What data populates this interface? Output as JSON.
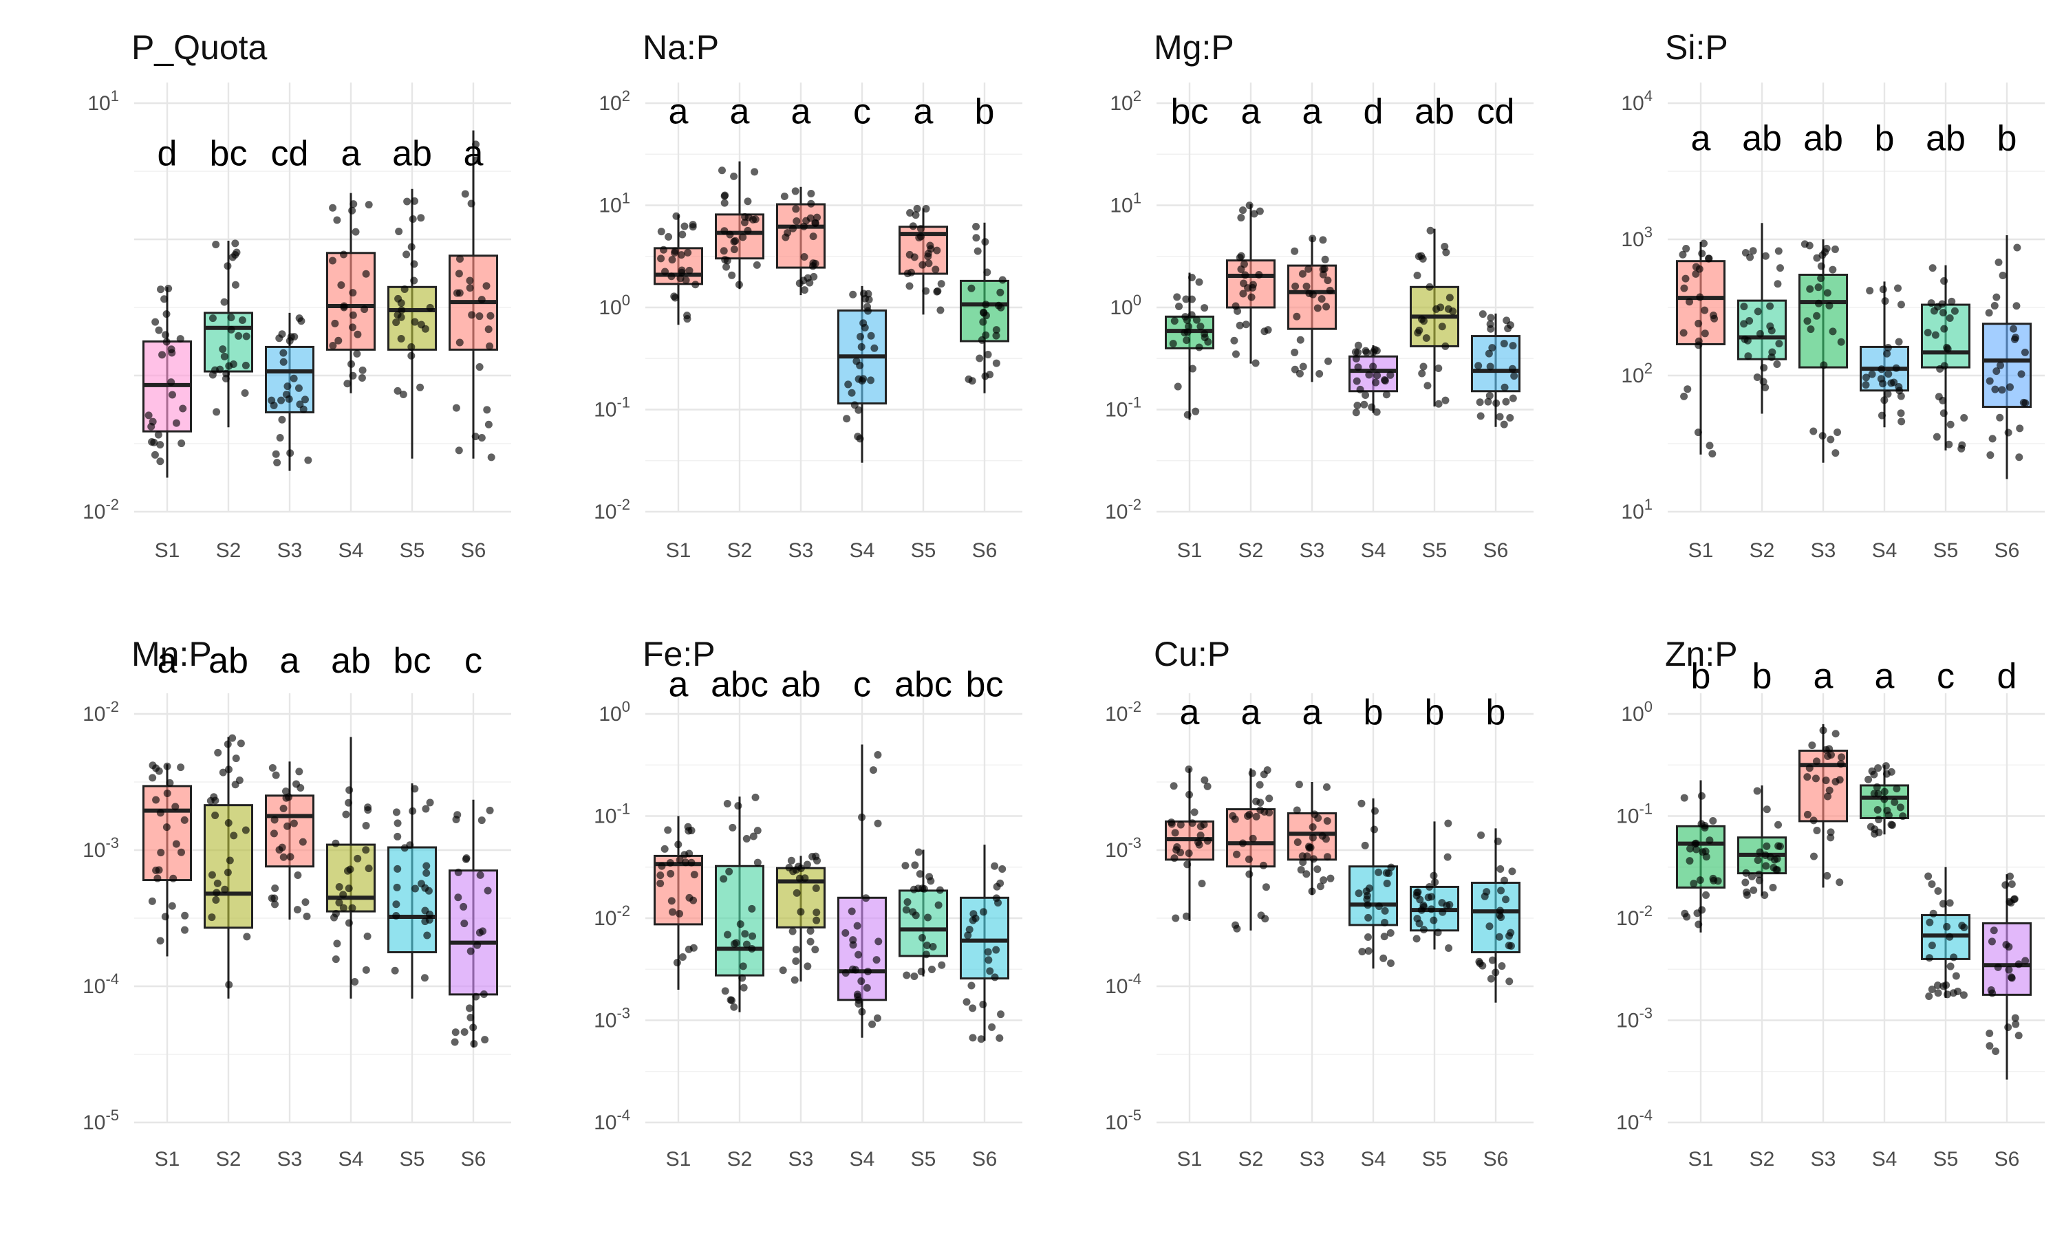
{
  "colors": {
    "pink": "#ff9bd9",
    "teal": "#4fd5a5",
    "blue": "#5fc2f2",
    "salmon": "#ff8a80",
    "olive": "#b5bb3a",
    "green": "#35c46c",
    "violet": "#d08cf7",
    "cyan": "#4fd0e4",
    "sky": "#6ab0ff"
  },
  "chart_data": [
    {
      "type": "box",
      "title": "P_Quota",
      "scale": "log10",
      "ylim_log10": [
        -2,
        1
      ],
      "y_ticks": [
        {
          "base": "10",
          "exp": "1",
          "value": 1
        },
        {
          "base": "10",
          "exp": "-2",
          "value": -2
        }
      ],
      "categories": [
        "S1",
        "S2",
        "S3",
        "S4",
        "S5",
        "S6"
      ],
      "letters": [
        "d",
        "bc",
        "cd",
        "a",
        "ab",
        "a"
      ],
      "letter_y_log10": 0.64,
      "boxes": [
        {
          "q1": -1.41,
          "median": -1.07,
          "q3": -0.75,
          "lo": -1.75,
          "hi": -0.35,
          "color": "pink"
        },
        {
          "q1": -0.97,
          "median": -0.65,
          "q3": -0.54,
          "lo": -1.38,
          "hi": -0.01,
          "color": "teal"
        },
        {
          "q1": -1.27,
          "median": -0.97,
          "q3": -0.79,
          "lo": -1.7,
          "hi": -0.54,
          "color": "blue"
        },
        {
          "q1": -0.81,
          "median": -0.49,
          "q3": -0.1,
          "lo": -1.13,
          "hi": 0.34,
          "color": "salmon"
        },
        {
          "q1": -0.81,
          "median": -0.52,
          "q3": -0.35,
          "lo": -1.61,
          "hi": 0.37,
          "color": "olive"
        },
        {
          "q1": -0.81,
          "median": -0.46,
          "q3": -0.12,
          "lo": -1.61,
          "hi": 0.8,
          "color": "salmon"
        }
      ]
    },
    {
      "type": "box",
      "title": "Na:P",
      "scale": "log10",
      "ylim_log10": [
        -2,
        2
      ],
      "y_ticks": [
        {
          "base": "10",
          "exp": "2",
          "value": 2
        },
        {
          "base": "10",
          "exp": "1",
          "value": 1
        },
        {
          "base": "10",
          "exp": "0",
          "value": 0
        },
        {
          "base": "10",
          "exp": "-1",
          "value": -1
        },
        {
          "base": "10",
          "exp": "-2",
          "value": -2
        }
      ],
      "categories": [
        "S1",
        "S2",
        "S3",
        "S4",
        "S5",
        "S6"
      ],
      "letters": [
        "a",
        "a",
        "a",
        "c",
        "a",
        "b"
      ],
      "letter_y_log10": 1.93,
      "boxes": [
        {
          "q1": 0.23,
          "median": 0.32,
          "q3": 0.58,
          "lo": -0.17,
          "hi": 0.91,
          "color": "salmon"
        },
        {
          "q1": 0.48,
          "median": 0.73,
          "q3": 0.91,
          "lo": 0.18,
          "hi": 1.43,
          "color": "salmon"
        },
        {
          "q1": 0.39,
          "median": 0.79,
          "q3": 1.01,
          "lo": 0.12,
          "hi": 1.18,
          "color": "salmon"
        },
        {
          "q1": -0.94,
          "median": -0.48,
          "q3": -0.03,
          "lo": -1.52,
          "hi": 0.21,
          "color": "blue"
        },
        {
          "q1": 0.33,
          "median": 0.72,
          "q3": 0.79,
          "lo": -0.07,
          "hi": 0.97,
          "color": "salmon"
        },
        {
          "q1": -0.33,
          "median": 0.03,
          "q3": 0.26,
          "lo": -0.84,
          "hi": 0.83,
          "color": "green"
        }
      ]
    },
    {
      "type": "box",
      "title": "Mg:P",
      "scale": "log10",
      "ylim_log10": [
        -2,
        2
      ],
      "y_ticks": [
        {
          "base": "10",
          "exp": "2",
          "value": 2
        },
        {
          "base": "10",
          "exp": "1",
          "value": 1
        },
        {
          "base": "10",
          "exp": "0",
          "value": 0
        },
        {
          "base": "10",
          "exp": "-1",
          "value": -1
        },
        {
          "base": "10",
          "exp": "-2",
          "value": -2
        }
      ],
      "categories": [
        "S1",
        "S2",
        "S3",
        "S4",
        "S5",
        "S6"
      ],
      "letters": [
        "bc",
        "a",
        "a",
        "d",
        "ab",
        "cd"
      ],
      "letter_y_log10": 1.93,
      "boxes": [
        {
          "q1": -0.4,
          "median": -0.23,
          "q3": -0.09,
          "lo": -1.1,
          "hi": 0.34,
          "color": "green"
        },
        {
          "q1": 0.0,
          "median": 0.31,
          "q3": 0.46,
          "lo": -0.55,
          "hi": 1.01,
          "color": "salmon"
        },
        {
          "q1": -0.21,
          "median": 0.15,
          "q3": 0.41,
          "lo": -0.73,
          "hi": 0.69,
          "color": "salmon"
        },
        {
          "q1": -0.82,
          "median": -0.62,
          "q3": -0.48,
          "lo": -1.03,
          "hi": -0.37,
          "color": "violet"
        },
        {
          "q1": -0.38,
          "median": -0.09,
          "q3": 0.2,
          "lo": -0.97,
          "hi": 0.77,
          "color": "olive"
        },
        {
          "q1": -0.82,
          "median": -0.62,
          "q3": -0.28,
          "lo": -1.17,
          "hi": -0.06,
          "color": "blue"
        }
      ]
    },
    {
      "type": "box",
      "title": "Si:P",
      "scale": "log10",
      "ylim_log10": [
        1,
        4
      ],
      "y_ticks": [
        {
          "base": "10",
          "exp": "4",
          "value": 4
        },
        {
          "base": "10",
          "exp": "3",
          "value": 3
        },
        {
          "base": "10",
          "exp": "2",
          "value": 2
        },
        {
          "base": "10",
          "exp": "1",
          "value": 1
        }
      ],
      "categories": [
        "S1",
        "S2",
        "S3",
        "S4",
        "S5",
        "S6"
      ],
      "letters": [
        "a",
        "ab",
        "ab",
        "b",
        "ab",
        "b"
      ],
      "letter_y_log10": 3.75,
      "boxes": [
        {
          "q1": 2.23,
          "median": 2.57,
          "q3": 2.84,
          "lo": 1.42,
          "hi": 2.98,
          "color": "salmon"
        },
        {
          "q1": 2.12,
          "median": 2.28,
          "q3": 2.55,
          "lo": 1.72,
          "hi": 3.12,
          "color": "teal"
        },
        {
          "q1": 2.06,
          "median": 2.54,
          "q3": 2.74,
          "lo": 1.36,
          "hi": 3.0,
          "color": "green"
        },
        {
          "q1": 1.89,
          "median": 2.05,
          "q3": 2.21,
          "lo": 1.62,
          "hi": 2.69,
          "color": "blue"
        },
        {
          "q1": 2.06,
          "median": 2.17,
          "q3": 2.52,
          "lo": 1.45,
          "hi": 2.81,
          "color": "teal"
        },
        {
          "q1": 1.77,
          "median": 2.11,
          "q3": 2.38,
          "lo": 1.24,
          "hi": 3.03,
          "color": "sky"
        }
      ]
    },
    {
      "type": "box",
      "title": "Mn:P",
      "scale": "log10",
      "ylim_log10": [
        -5,
        -2
      ],
      "y_ticks": [
        {
          "base": "10",
          "exp": "-2",
          "value": -2
        },
        {
          "base": "10",
          "exp": "-3",
          "value": -3
        },
        {
          "base": "10",
          "exp": "-4",
          "value": -4
        },
        {
          "base": "10",
          "exp": "-5",
          "value": -5
        }
      ],
      "categories": [
        "S1",
        "S2",
        "S3",
        "S4",
        "S5",
        "S6"
      ],
      "letters": [
        "a",
        "ab",
        "a",
        "ab",
        "bc",
        "c"
      ],
      "letter_y_log10": -1.6,
      "boxes": [
        {
          "q1": -3.22,
          "median": -2.71,
          "q3": -2.53,
          "lo": -3.78,
          "hi": -2.37,
          "color": "salmon"
        },
        {
          "q1": -3.57,
          "median": -3.32,
          "q3": -2.67,
          "lo": -4.09,
          "hi": -2.17,
          "color": "olive"
        },
        {
          "q1": -3.12,
          "median": -2.75,
          "q3": -2.6,
          "lo": -3.51,
          "hi": -2.35,
          "color": "salmon"
        },
        {
          "q1": -3.45,
          "median": -3.35,
          "q3": -2.96,
          "lo": -4.09,
          "hi": -2.17,
          "color": "olive"
        },
        {
          "q1": -3.75,
          "median": -3.49,
          "q3": -2.98,
          "lo": -4.09,
          "hi": -2.51,
          "color": "cyan"
        },
        {
          "q1": -4.06,
          "median": -3.68,
          "q3": -3.15,
          "lo": -4.45,
          "hi": -2.63,
          "color": "violet"
        }
      ]
    },
    {
      "type": "box",
      "title": "Fe:P",
      "scale": "log10",
      "ylim_log10": [
        -4,
        0
      ],
      "y_ticks": [
        {
          "base": "10",
          "exp": "0",
          "value": 0
        },
        {
          "base": "10",
          "exp": "-1",
          "value": -1
        },
        {
          "base": "10",
          "exp": "-2",
          "value": -2
        },
        {
          "base": "10",
          "exp": "-3",
          "value": -3
        },
        {
          "base": "10",
          "exp": "-4",
          "value": -4
        }
      ],
      "categories": [
        "S1",
        "S2",
        "S3",
        "S4",
        "S5",
        "S6"
      ],
      "letters": [
        "a",
        "abc",
        "ab",
        "c",
        "abc",
        "bc"
      ],
      "letter_y_log10": 0.3,
      "boxes": [
        {
          "q1": -2.06,
          "median": -1.47,
          "q3": -1.39,
          "lo": -2.7,
          "hi": -1.0,
          "color": "salmon"
        },
        {
          "q1": -2.56,
          "median": -2.3,
          "q3": -1.49,
          "lo": -2.92,
          "hi": -0.81,
          "color": "teal"
        },
        {
          "q1": -2.09,
          "median": -1.64,
          "q3": -1.51,
          "lo": -2.62,
          "hi": -1.39,
          "color": "olive"
        },
        {
          "q1": -2.8,
          "median": -2.52,
          "q3": -1.8,
          "lo": -3.17,
          "hi": -0.3,
          "color": "violet"
        },
        {
          "q1": -2.37,
          "median": -2.11,
          "q3": -1.73,
          "lo": -2.57,
          "hi": -1.33,
          "color": "teal"
        },
        {
          "q1": -2.59,
          "median": -2.22,
          "q3": -1.8,
          "lo": -3.2,
          "hi": -1.28,
          "color": "cyan"
        }
      ]
    },
    {
      "type": "box",
      "title": "Cu:P",
      "scale": "log10",
      "ylim_log10": [
        -5,
        -2
      ],
      "y_ticks": [
        {
          "base": "10",
          "exp": "-2",
          "value": -2
        },
        {
          "base": "10",
          "exp": "-3",
          "value": -3
        },
        {
          "base": "10",
          "exp": "-4",
          "value": -4
        },
        {
          "base": "10",
          "exp": "-5",
          "value": -5
        }
      ],
      "categories": [
        "S1",
        "S2",
        "S3",
        "S4",
        "S5",
        "S6"
      ],
      "letters": [
        "a",
        "a",
        "a",
        "b",
        "b",
        "b"
      ],
      "letter_y_log10": -1.98,
      "boxes": [
        {
          "q1": -3.07,
          "median": -2.92,
          "q3": -2.79,
          "lo": -3.52,
          "hi": -2.4,
          "color": "salmon"
        },
        {
          "q1": -3.12,
          "median": -2.95,
          "q3": -2.7,
          "lo": -3.59,
          "hi": -2.4,
          "color": "salmon"
        },
        {
          "q1": -3.07,
          "median": -2.88,
          "q3": -2.73,
          "lo": -3.33,
          "hi": -2.5,
          "color": "salmon"
        },
        {
          "q1": -3.55,
          "median": -3.4,
          "q3": -3.12,
          "lo": -3.87,
          "hi": -2.62,
          "color": "cyan"
        },
        {
          "q1": -3.59,
          "median": -3.44,
          "q3": -3.27,
          "lo": -3.73,
          "hi": -2.79,
          "color": "cyan"
        },
        {
          "q1": -3.75,
          "median": -3.45,
          "q3": -3.24,
          "lo": -4.12,
          "hi": -2.84,
          "color": "cyan"
        }
      ]
    },
    {
      "type": "box",
      "title": "Zn:P",
      "scale": "log10",
      "ylim_log10": [
        -4,
        0
      ],
      "y_ticks": [
        {
          "base": "10",
          "exp": "0",
          "value": 0
        },
        {
          "base": "10",
          "exp": "-1",
          "value": -1
        },
        {
          "base": "10",
          "exp": "-2",
          "value": -2
        },
        {
          "base": "10",
          "exp": "-3",
          "value": -3
        },
        {
          "base": "10",
          "exp": "-4",
          "value": -4
        }
      ],
      "categories": [
        "S1",
        "S2",
        "S3",
        "S4",
        "S5",
        "S6"
      ],
      "letters": [
        "b",
        "b",
        "a",
        "a",
        "c",
        "d"
      ],
      "letter_y_log10": 0.38,
      "boxes": [
        {
          "q1": -1.7,
          "median": -1.27,
          "q3": -1.1,
          "lo": -2.14,
          "hi": -0.65,
          "color": "green"
        },
        {
          "q1": -1.56,
          "median": -1.38,
          "q3": -1.21,
          "lo": -1.78,
          "hi": -0.7,
          "color": "green"
        },
        {
          "q1": -1.05,
          "median": -0.5,
          "q3": -0.36,
          "lo": -1.7,
          "hi": -0.1,
          "color": "salmon"
        },
        {
          "q1": -1.02,
          "median": -0.82,
          "q3": -0.7,
          "lo": -1.18,
          "hi": -0.5,
          "color": "green"
        },
        {
          "q1": -2.4,
          "median": -2.17,
          "q3": -1.97,
          "lo": -2.78,
          "hi": -1.5,
          "color": "cyan"
        },
        {
          "q1": -2.75,
          "median": -2.46,
          "q3": -2.05,
          "lo": -3.58,
          "hi": -1.57,
          "color": "violet"
        }
      ]
    }
  ]
}
